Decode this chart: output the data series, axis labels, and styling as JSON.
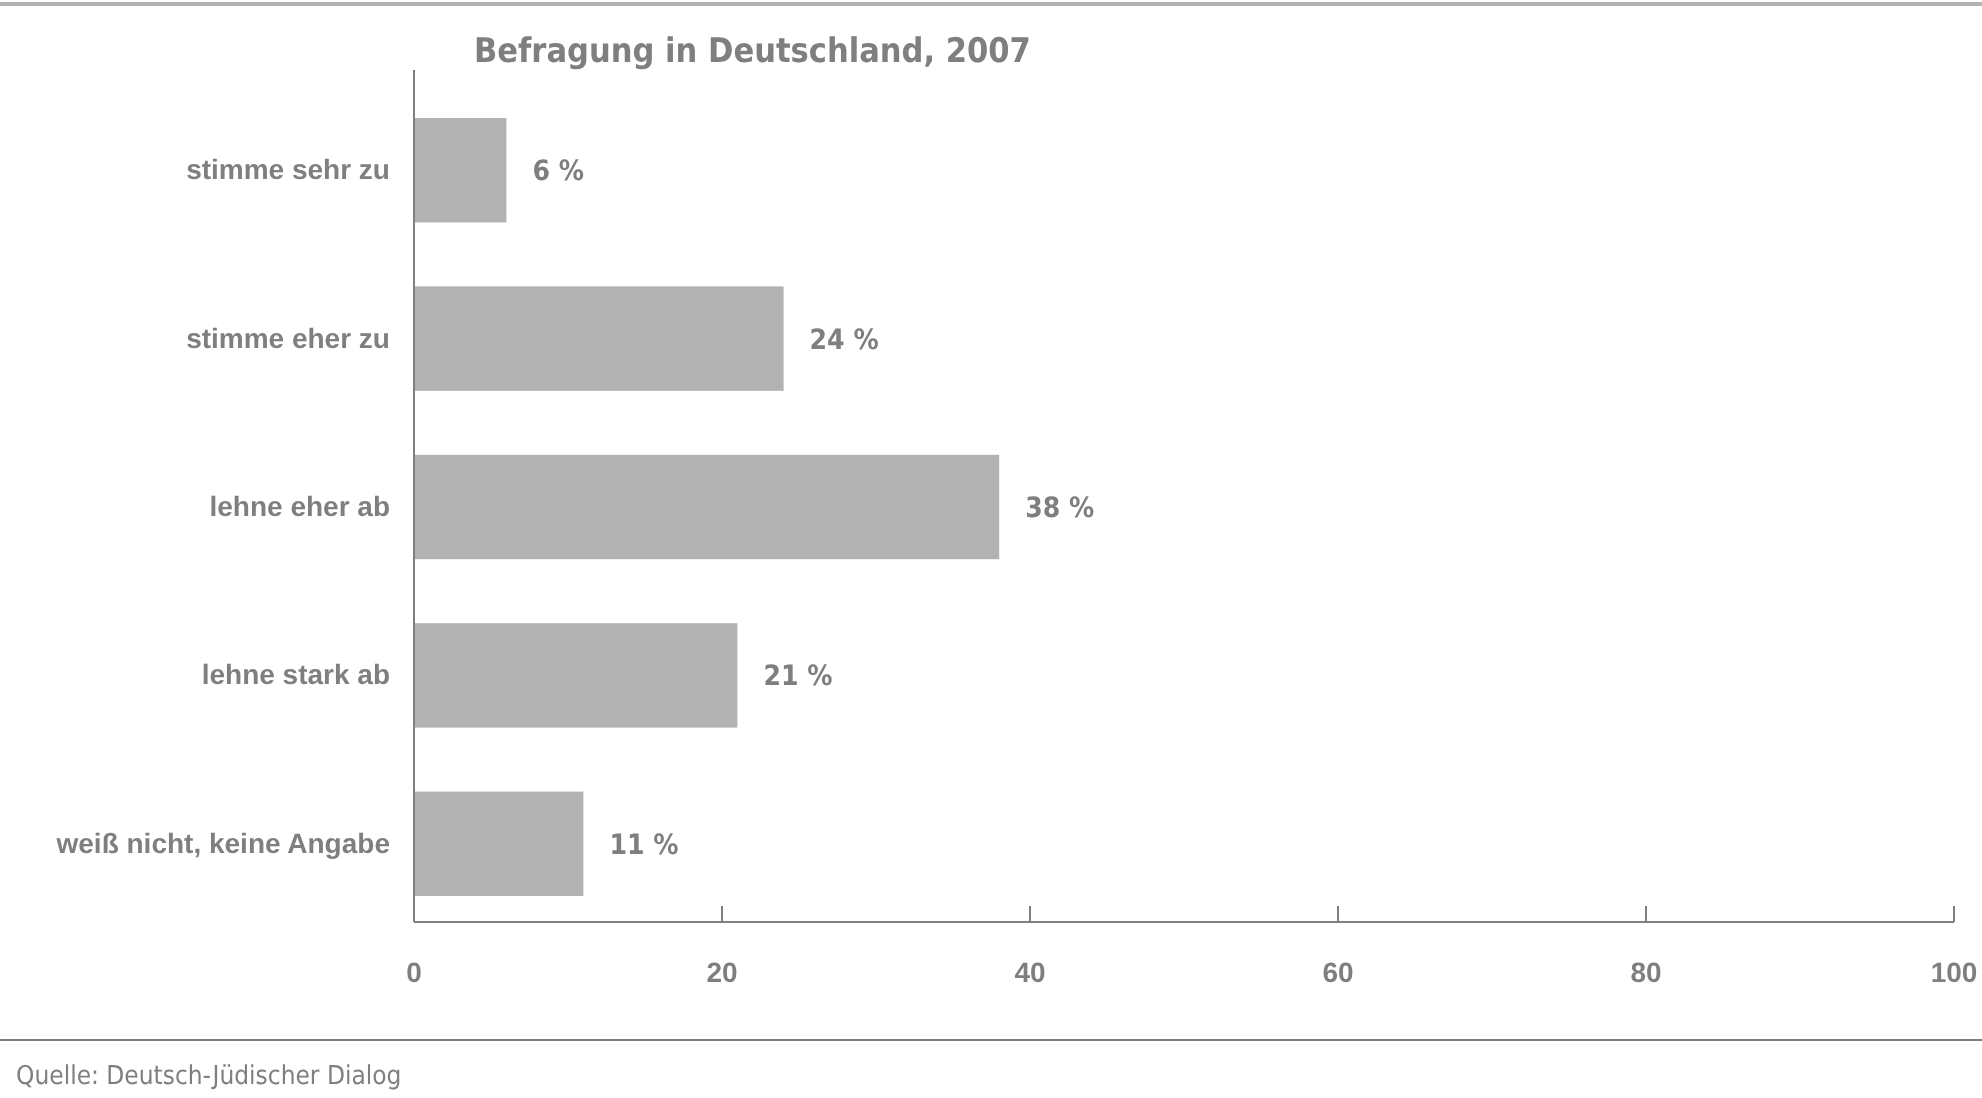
{
  "chart_data": {
    "type": "bar",
    "orientation": "horizontal",
    "title": "Befragung in Deutschland, 2007",
    "categories": [
      "stimme sehr zu",
      "stimme eher zu",
      "lehne eher ab",
      "lehne stark ab",
      "weiß nicht, keine Angabe"
    ],
    "values": [
      6,
      24,
      38,
      21,
      11
    ],
    "value_labels": [
      "6 %",
      "24 %",
      "38 %",
      "21 %",
      "11 %"
    ],
    "color": "#b2b2b2",
    "xlim": [
      0,
      100
    ],
    "xticks": [
      0,
      20,
      40,
      60,
      80,
      100
    ],
    "annotations": [
      "Quelle: Deutsch-Jüdischer Dialog"
    ]
  }
}
